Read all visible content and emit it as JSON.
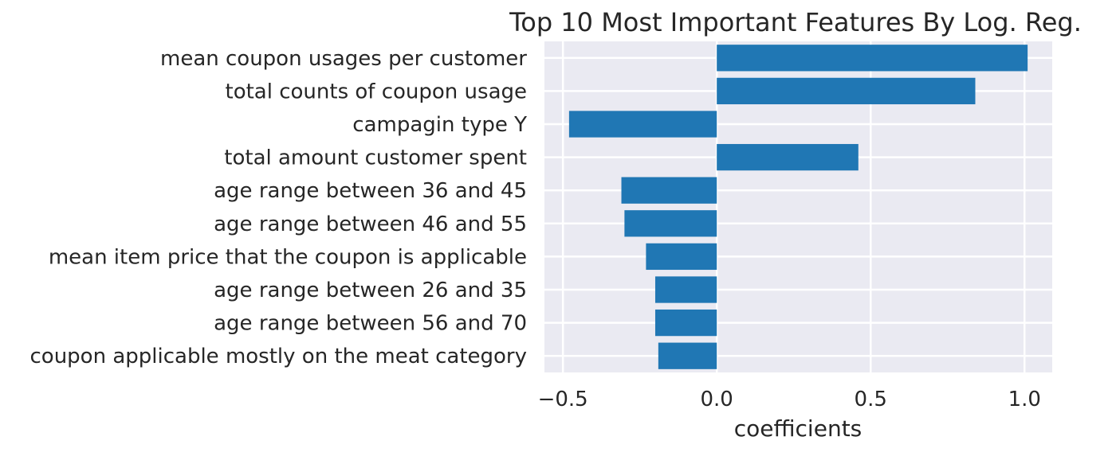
{
  "chart_data": {
    "type": "bar",
    "orientation": "horizontal",
    "title": "Top 10 Most Important Features By Log. Reg.",
    "xlabel": "coefficients",
    "ylabel": "",
    "xlim": [
      -0.56,
      1.09
    ],
    "xticks": [
      -0.5,
      0.0,
      0.5,
      1.0
    ],
    "xtick_labels": [
      "−0.5",
      "0.0",
      "0.5",
      "1.0"
    ],
    "grid": true,
    "categories": [
      "mean coupon usages per customer",
      "total counts of coupon usage",
      "campagin type Y",
      "total amount customer spent",
      "age range between 36 and 45",
      "age range between 46 and 55",
      "mean item price that the coupon is applicable",
      "age range between 26 and 35",
      "age range between 56 and 70",
      "coupon applicable mostly on the meat category"
    ],
    "values": [
      1.01,
      0.84,
      -0.48,
      0.46,
      -0.31,
      -0.3,
      -0.23,
      -0.2,
      -0.2,
      -0.19
    ],
    "colors": {
      "bar": "#2077b4",
      "plot_background": "#eaeaf2",
      "grid": "#ffffff",
      "text": "#262626"
    }
  }
}
